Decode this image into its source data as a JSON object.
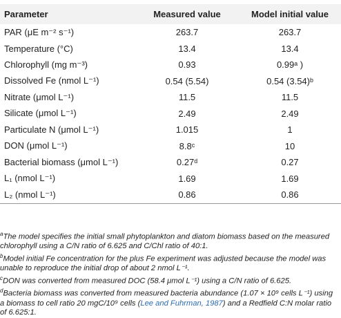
{
  "table": {
    "headers": {
      "parameter": "Parameter",
      "measured": "Measured value",
      "model": "Model initial value"
    },
    "rows": [
      {
        "param": "PAR (μE m⁻² s⁻¹)",
        "measured": "263.7",
        "model": "263.7"
      },
      {
        "param": "Temperature (°C)",
        "measured": "13.4",
        "model": "13.4"
      },
      {
        "param": "Chlorophyll (mg m⁻³)",
        "measured": "0.93",
        "model": "0.99ᵃ )"
      },
      {
        "param": "Dissolved Fe (nmol L⁻¹)",
        "measured": "0.54 (5.54)",
        "model": "0.54 (3.54)ᵇ"
      },
      {
        "param": "Nitrate (μmol L⁻¹)",
        "measured": "11.5",
        "model": "11.5"
      },
      {
        "param": "Silicate (μmol L⁻¹)",
        "measured": "2.49",
        "model": "2.49"
      },
      {
        "param": "Particulate N (μmol L⁻¹)",
        "measured": "1.015",
        "model": "1"
      },
      {
        "param": "DON (μmol L⁻¹)",
        "measured": "8.8ᶜ",
        "model": "10"
      },
      {
        "param": "Bacterial biomass (μmol L⁻¹)",
        "measured": "0.27ᵈ",
        "model": "0.27"
      },
      {
        "param": "L₁ (nmol L⁻¹)",
        "measured": "1.69",
        "model": "1.69"
      },
      {
        "param": "L₂ (nmol L⁻¹)",
        "measured": "0.86",
        "model": "0.86"
      }
    ]
  },
  "footnotes": {
    "a": {
      "mark": "a",
      "text": "The model specifies the initial small phytoplankton and diatom biomass based on the measured chlorophyll using a C/N ratio of 6.625 and C/Chl ratio of 40:1."
    },
    "b": {
      "mark": "b",
      "text": "Model initial Fe concentration for the plus Fe experiment was adjusted because the model was unable to reproduce the initial drop of about 2 nmol L⁻¹."
    },
    "c": {
      "mark": "c",
      "text": "DON was converted from measured DOC (58.4 μmol L⁻¹) using a C/N ratio of 6.625."
    },
    "d": {
      "mark": "d",
      "text_before": "Bacteria biomass was converted from measured bacteria abundance (1.07 × 10⁹ cells L⁻¹) using a biomass to cell ratio 20 mgC/10⁹ cells (",
      "citation": "Lee and Fuhrman, 1987",
      "text_after": ") and a Redfield C:N molar ratio of 6.625:1."
    }
  }
}
